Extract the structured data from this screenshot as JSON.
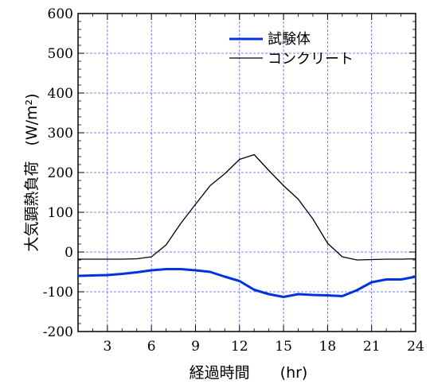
{
  "chart_data": {
    "type": "line",
    "xlabel": "経過時間　　(hr)",
    "ylabel": "大気顕熱負荷　(W/m²)",
    "xlim": [
      1,
      24
    ],
    "ylim": [
      -200,
      600
    ],
    "xticks": [
      3,
      6,
      9,
      12,
      15,
      18,
      21,
      24
    ],
    "yticks": [
      -200,
      -100,
      0,
      100,
      200,
      300,
      400,
      500,
      600
    ],
    "grid": true,
    "legend_position": "top-right",
    "series": [
      {
        "name": "試験体",
        "color": "#0033dd",
        "x": [
          1,
          2,
          3,
          4,
          5,
          6,
          7,
          8,
          9,
          10,
          11,
          12,
          13,
          14,
          15,
          16,
          17,
          18,
          19,
          20,
          21,
          22,
          23,
          24
        ],
        "values": [
          -60,
          -59,
          -58,
          -55,
          -51,
          -46,
          -43,
          -43,
          -46,
          -50,
          -62,
          -73,
          -95,
          -106,
          -113,
          -106,
          -108,
          -109,
          -111,
          -96,
          -76,
          -69,
          -69,
          -62
        ]
      },
      {
        "name": "コンクリート",
        "color": "#000000",
        "x": [
          1,
          2,
          3,
          4,
          5,
          6,
          7,
          8,
          9,
          10,
          11,
          12,
          13,
          14,
          15,
          16,
          17,
          18,
          19,
          20,
          21,
          22,
          23,
          24
        ],
        "values": [
          -18,
          -18,
          -18,
          -18,
          -17,
          -12,
          18,
          72,
          120,
          167,
          197,
          233,
          245,
          205,
          167,
          133,
          83,
          22,
          -12,
          -20,
          -19,
          -18,
          -18,
          -17
        ]
      }
    ]
  }
}
